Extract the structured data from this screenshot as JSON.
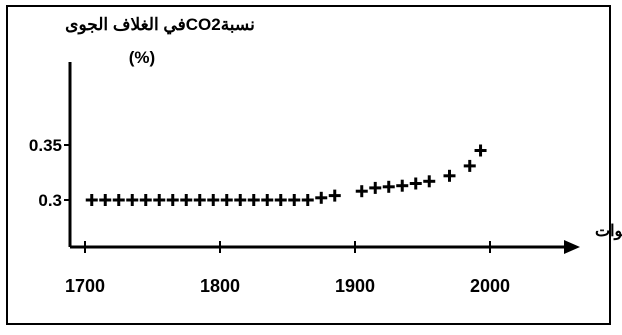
{
  "chart_data": {
    "type": "scatter",
    "ylabel_line1": "نسبةCO2في الغلاف الجوى",
    "ylabel_line2": "(%)",
    "xlabel": "السنوات",
    "x_ticks": [
      {
        "value": 1700,
        "label": "1700"
      },
      {
        "value": 1800,
        "label": "1800"
      },
      {
        "value": 1900,
        "label": "1900"
      },
      {
        "value": 2000,
        "label": "2000"
      }
    ],
    "y_ticks": [
      {
        "value": 0.3,
        "label": "0.3"
      },
      {
        "value": 0.35,
        "label": "0.35"
      }
    ],
    "xlim": [
      1690,
      2050
    ],
    "ylim": [
      0.28,
      0.38
    ],
    "grid": false,
    "marker": "plus",
    "colors": {
      "marker": "#000000",
      "axis": "#000000"
    },
    "points": [
      {
        "x": 1705,
        "y": 0.3
      },
      {
        "x": 1715,
        "y": 0.3
      },
      {
        "x": 1725,
        "y": 0.3
      },
      {
        "x": 1735,
        "y": 0.3
      },
      {
        "x": 1745,
        "y": 0.3
      },
      {
        "x": 1755,
        "y": 0.3
      },
      {
        "x": 1765,
        "y": 0.3
      },
      {
        "x": 1775,
        "y": 0.3
      },
      {
        "x": 1785,
        "y": 0.3
      },
      {
        "x": 1795,
        "y": 0.3
      },
      {
        "x": 1805,
        "y": 0.3
      },
      {
        "x": 1815,
        "y": 0.3
      },
      {
        "x": 1825,
        "y": 0.3
      },
      {
        "x": 1835,
        "y": 0.3
      },
      {
        "x": 1845,
        "y": 0.3
      },
      {
        "x": 1855,
        "y": 0.3
      },
      {
        "x": 1865,
        "y": 0.3
      },
      {
        "x": 1875,
        "y": 0.302
      },
      {
        "x": 1885,
        "y": 0.304
      },
      {
        "x": 1905,
        "y": 0.308
      },
      {
        "x": 1915,
        "y": 0.311
      },
      {
        "x": 1925,
        "y": 0.312
      },
      {
        "x": 1935,
        "y": 0.313
      },
      {
        "x": 1945,
        "y": 0.315
      },
      {
        "x": 1955,
        "y": 0.317
      },
      {
        "x": 1970,
        "y": 0.322
      },
      {
        "x": 1985,
        "y": 0.331
      },
      {
        "x": 1993,
        "y": 0.345
      }
    ]
  }
}
